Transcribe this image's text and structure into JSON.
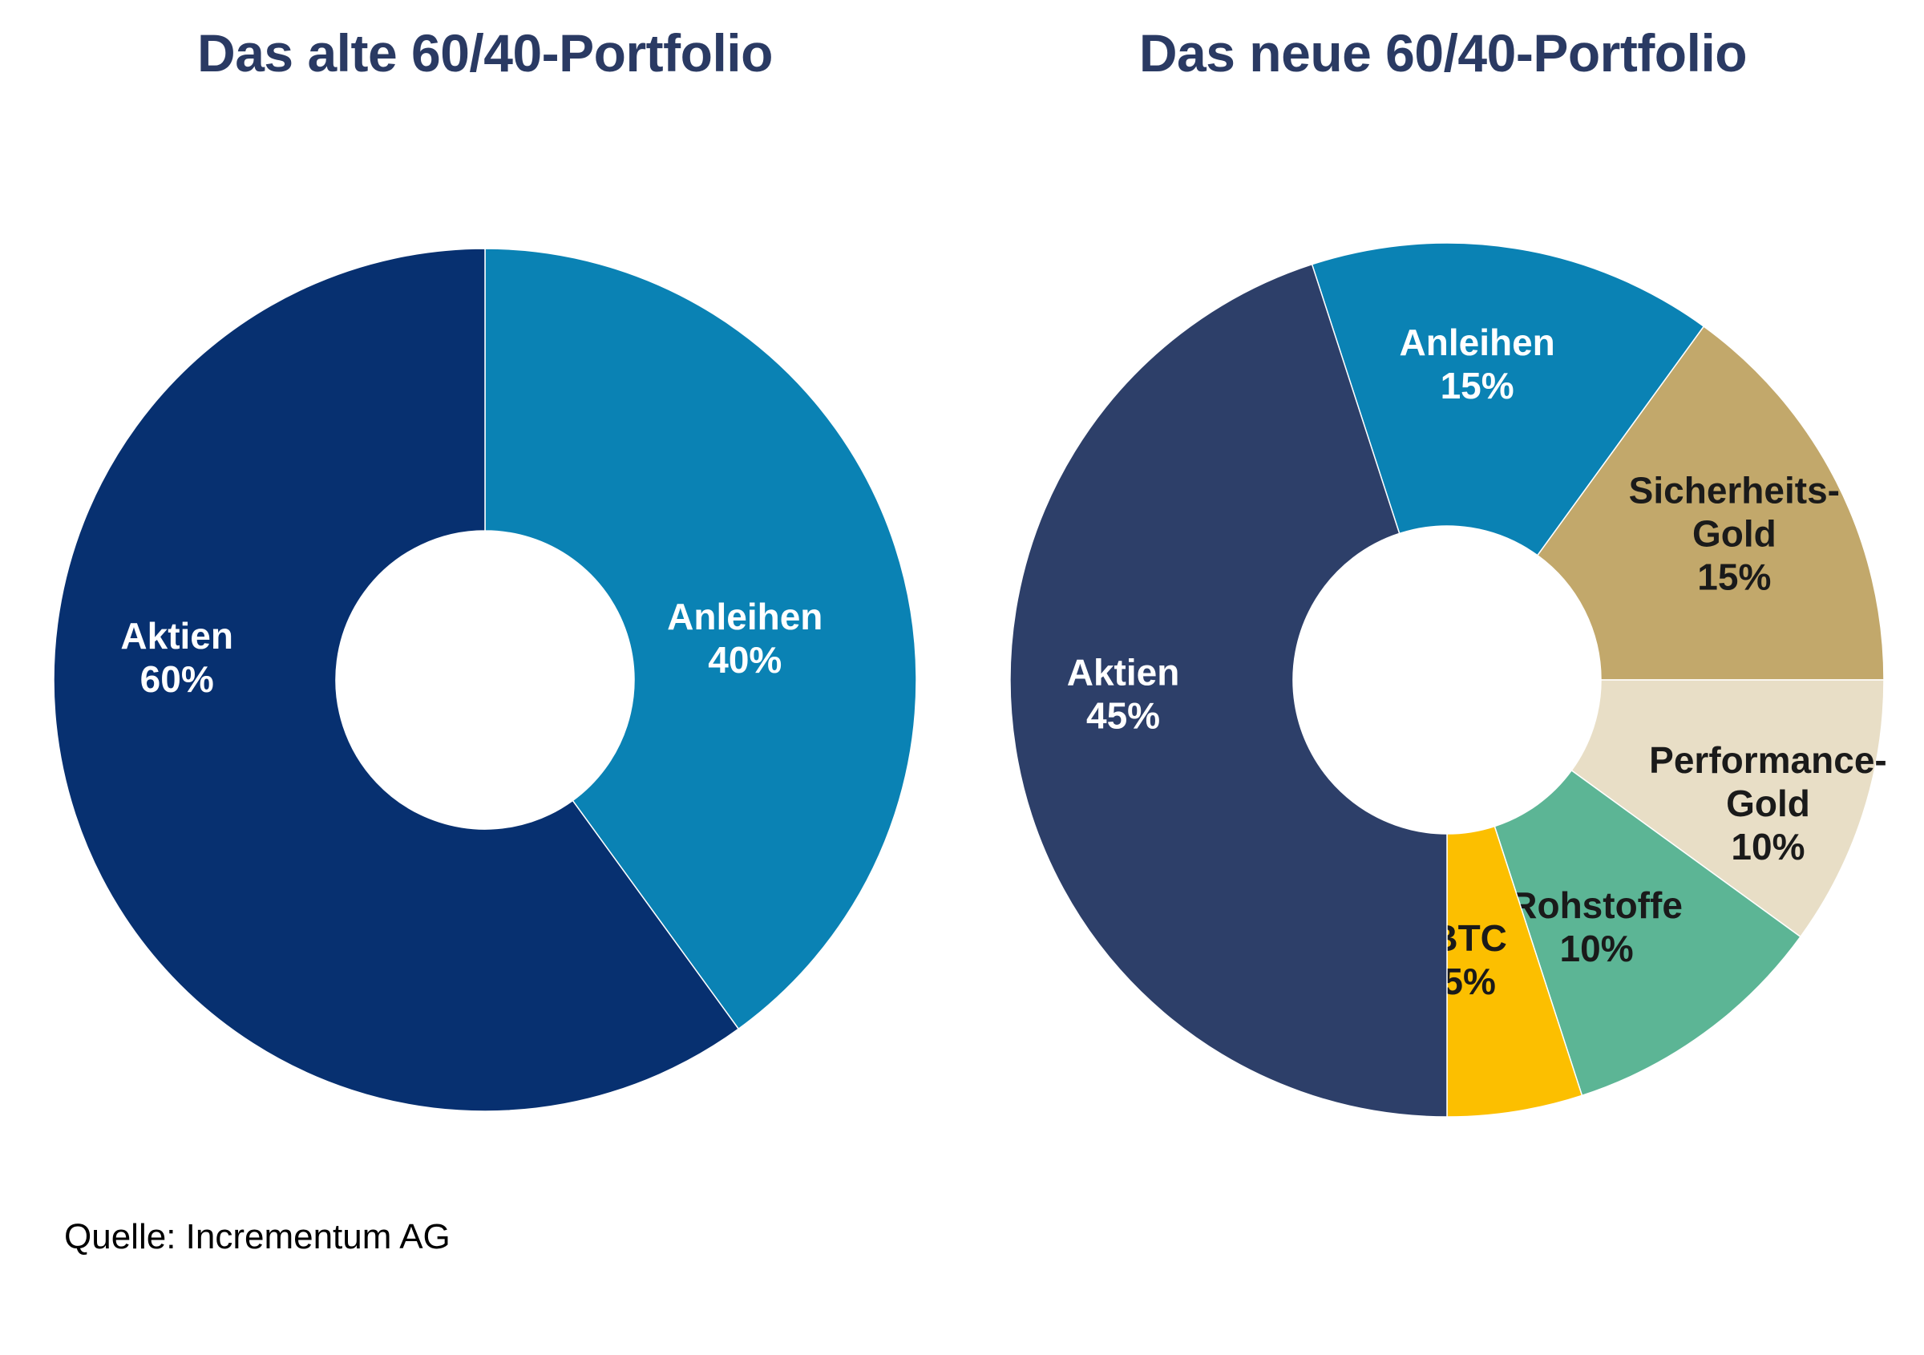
{
  "chart_data": [
    {
      "type": "pie",
      "title": "Das alte 60/40-Portfolio",
      "slices": [
        {
          "label": "Anleihen",
          "value": 40,
          "value_label": "40%",
          "color": "#0a82b4",
          "text_color": "#ffffff"
        },
        {
          "label": "Aktien",
          "value": 60,
          "value_label": "60%",
          "color": "#073070",
          "text_color": "#ffffff"
        }
      ]
    },
    {
      "type": "pie",
      "title": "Das neue 60/40-Portfolio",
      "slices": [
        {
          "label": "Anleihen",
          "value": 15,
          "value_label": "15%",
          "color": "#0a82b4",
          "text_color": "#ffffff"
        },
        {
          "label": "Sicherheits-\nGold",
          "value": 15,
          "value_label": "15%",
          "color": "#c2a86b",
          "text_color": "#1a1a1a"
        },
        {
          "label": "Performance-\nGold",
          "value": 10,
          "value_label": "10%",
          "color": "#e8dec6",
          "text_color": "#1a1a1a"
        },
        {
          "label": "Rohstoffe",
          "value": 10,
          "value_label": "10%",
          "color": "#5cb595",
          "text_color": "#1a1a1a"
        },
        {
          "label": "BTC",
          "value": 5,
          "value_label": "5%",
          "color": "#fcbf00",
          "text_color": "#1a1a1a"
        },
        {
          "label": "Aktien",
          "value": 45,
          "value_label": "45%",
          "color": "#2d3f69",
          "text_color": "#ffffff"
        }
      ]
    }
  ],
  "source": "Quelle: Incrementum AG"
}
